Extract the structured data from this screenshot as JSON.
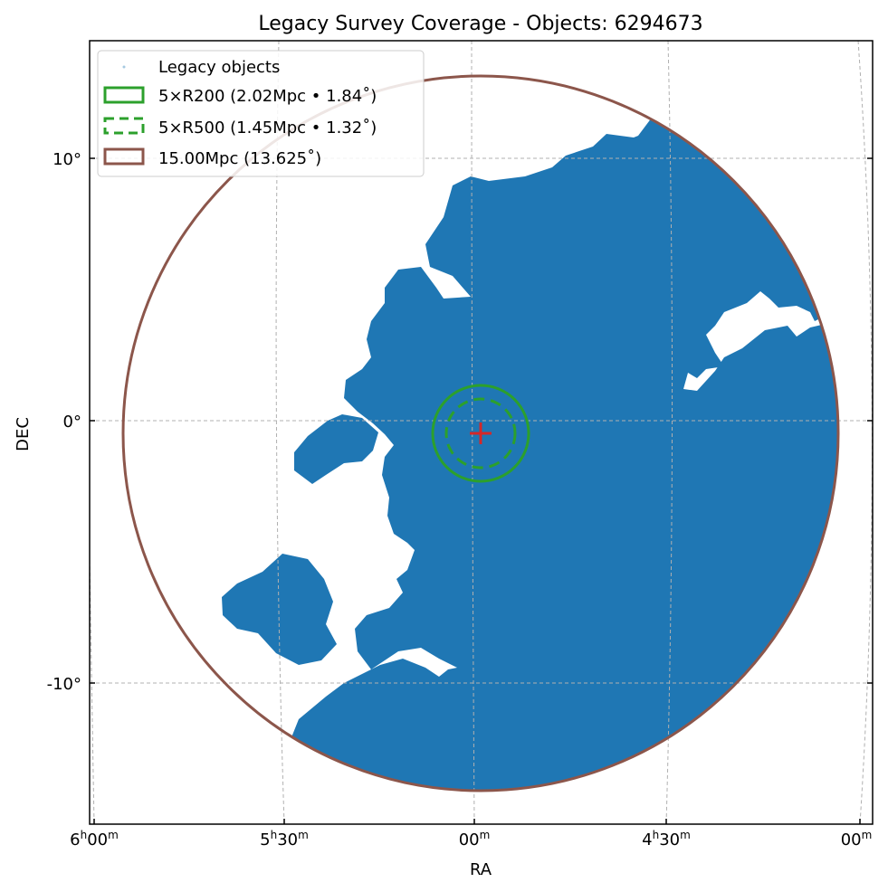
{
  "chart_data": {
    "type": "scatter",
    "title": "Legacy Survey Coverage - Objects: 6294673",
    "xlabel": "RA",
    "ylabel": "DEC",
    "projection": "sky (RA/DEC)",
    "grid": true,
    "grid_style": "dashed",
    "legend_position": "top-left",
    "x_ticks": [
      {
        "h": "6",
        "m": "00",
        "has_hour": true
      },
      {
        "h": "5",
        "m": "30",
        "has_hour": true
      },
      {
        "h": "",
        "m": "00",
        "has_hour": false
      },
      {
        "h": "4",
        "m": "30",
        "has_hour": true
      },
      {
        "h": "",
        "m": "00",
        "has_hour": false
      }
    ],
    "y_ticks": [
      "10°",
      "0°",
      "-10°"
    ],
    "y_tick_values": [
      10,
      0,
      -10
    ],
    "center_marker": {
      "ra_label": "5h00m",
      "dec": -0.5,
      "symbol": "+",
      "color": "#d62728"
    },
    "series": [
      {
        "name": "Legacy objects",
        "kind": "points",
        "color": "#1f77b4",
        "count": 6294673
      },
      {
        "name": "5×R200 (2.02Mpc • 1.84˚)",
        "kind": "circle",
        "radius_deg": 1.84,
        "linestyle": "solid",
        "color": "#2ca02c"
      },
      {
        "name": "5×R500 (1.45Mpc • 1.32˚)",
        "kind": "circle",
        "radius_deg": 1.32,
        "linestyle": "dashed",
        "color": "#2ca02c"
      },
      {
        "name": "15.00Mpc (13.625˚)",
        "kind": "circle",
        "radius_deg": 13.625,
        "linestyle": "solid",
        "color": "#8c564b"
      }
    ]
  },
  "colors": {
    "points": "#1f77b4",
    "r200": "#2ca02c",
    "r500": "#2ca02c",
    "outer": "#8c564b",
    "center": "#d62728",
    "grid": "#b0b0b0"
  }
}
